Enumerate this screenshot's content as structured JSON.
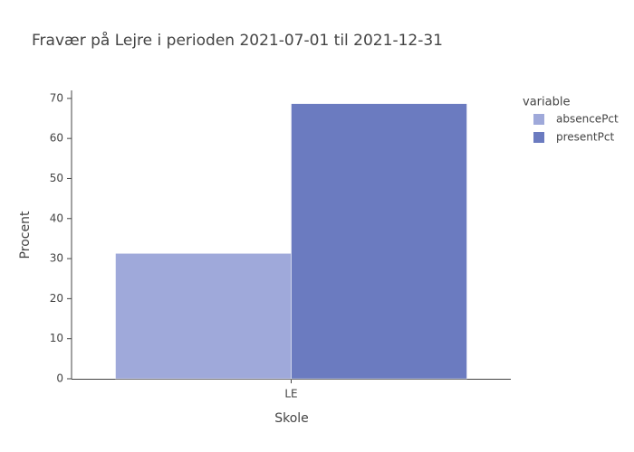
{
  "chart_data": {
    "type": "bar",
    "title": "Fravær på Lejre i perioden 2021-07-01 til 2021-12-31",
    "x_label": "Skole",
    "y_label": "Procent",
    "legend_title": "variable",
    "categories": [
      "LE"
    ],
    "series": [
      {
        "name": "absencePct",
        "color": "#9fa9da",
        "values": [
          31.3
        ]
      },
      {
        "name": "presentPct",
        "color": "#6b7bc0",
        "values": [
          68.7
        ]
      }
    ],
    "ylim": [
      0,
      72
    ],
    "yticks": [
      0,
      10,
      20,
      30,
      40,
      50,
      60,
      70
    ],
    "grid": false,
    "legend": "right"
  }
}
